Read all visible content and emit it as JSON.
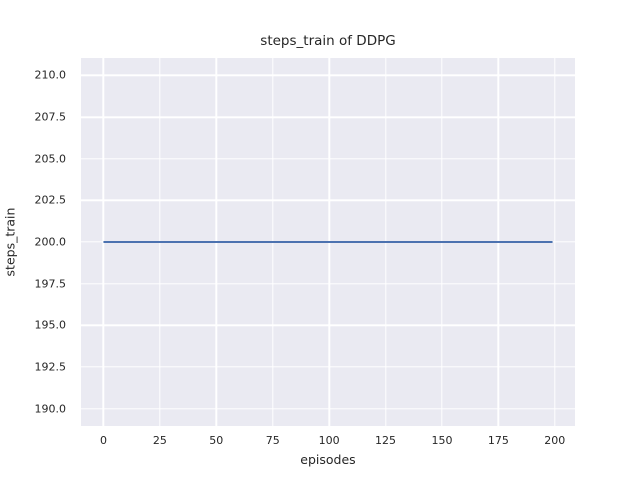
{
  "colors": {
    "figure_background": "#ffffff",
    "axes_background": "#eaeaf2",
    "grid": "#ffffff",
    "text": "#262626",
    "line": "#4c72b0"
  },
  "chart_data": {
    "type": "line",
    "title": "steps_train of DDPG",
    "xlabel": "episodes",
    "ylabel": "steps_train",
    "grid": true,
    "legend": null,
    "xlim": [
      -9.95,
      208.95
    ],
    "ylim": [
      188.95,
      211.05
    ],
    "xticks": [
      0,
      25,
      50,
      75,
      100,
      125,
      150,
      175,
      200
    ],
    "xtick_labels": [
      "0",
      "25",
      "50",
      "75",
      "100",
      "125",
      "150",
      "175",
      "200"
    ],
    "yticks": [
      190.0,
      192.5,
      195.0,
      197.5,
      200.0,
      202.5,
      205.0,
      207.5,
      210.0
    ],
    "ytick_labels": [
      "190.0",
      "192.5",
      "195.0",
      "197.5",
      "200.0",
      "202.5",
      "205.0",
      "207.5",
      "210.0"
    ],
    "series": [
      {
        "name": "steps_train",
        "color": "#4c72b0",
        "x": [
          0,
          199
        ],
        "y": [
          200,
          200
        ]
      }
    ]
  }
}
